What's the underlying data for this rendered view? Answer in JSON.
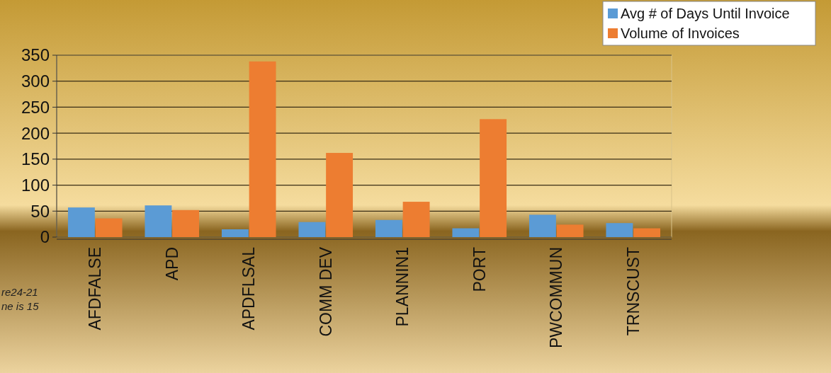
{
  "chart_data": {
    "type": "bar",
    "categories": [
      "AFDFALSE",
      "APD",
      "APDFLSAL",
      "COMM DEV",
      "PLANNIN1",
      "PORT",
      "PWCOMMUN",
      "TRNSCUST"
    ],
    "series": [
      {
        "name": "Avg # of Days Until Invoice",
        "color": "#5b9bd5",
        "values": [
          57,
          61,
          15,
          29,
          33,
          17,
          43,
          27
        ]
      },
      {
        "name": "Volume of Invoices",
        "color": "#ed7d31",
        "values": [
          36,
          52,
          338,
          162,
          68,
          227,
          24,
          17
        ]
      }
    ],
    "ylim": [
      0,
      350
    ],
    "yticks": [
      0,
      50,
      100,
      150,
      200,
      250,
      300,
      350
    ],
    "grid": "y",
    "legend": "top right",
    "annotations": [
      "re24-21",
      "ne is 15"
    ]
  }
}
